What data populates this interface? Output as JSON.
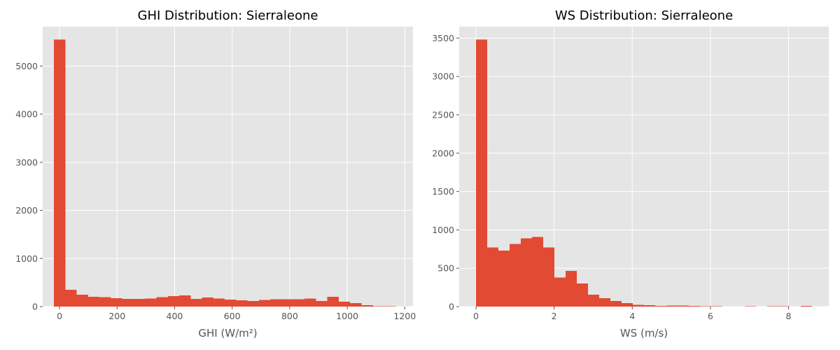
{
  "colors": {
    "plot_background": "#e5e5e5",
    "bar": "#e24a33",
    "grid": "#ffffff",
    "text": "#555555"
  },
  "chart_data": [
    {
      "type": "bar",
      "title": "GHI Distribution: Sierraleone",
      "xlabel": "GHI (W/m²)",
      "ylabel": "",
      "grid": true,
      "xlim": [
        -58.5,
        1228.5
      ],
      "ylim": [
        0,
        5820
      ],
      "xticks": [
        0,
        200,
        400,
        600,
        800,
        1000,
        1200
      ],
      "yticks": [
        0,
        1000,
        2000,
        3000,
        4000,
        5000
      ],
      "bin_edges": [
        -19.5,
        20.1,
        59.7,
        99.3,
        138.9,
        178.5,
        218.1,
        257.7,
        297.3,
        336.9,
        376.5,
        416.1,
        455.7,
        495.3,
        534.9,
        574.5,
        614.1,
        653.7,
        693.3,
        732.9,
        772.5,
        812.1,
        851.7,
        891.3,
        930.9,
        970.5,
        1010.1,
        1049.7,
        1089.3,
        1128.9,
        1168.5
      ],
      "counts": [
        5550,
        350,
        250,
        205,
        200,
        175,
        160,
        160,
        170,
        200,
        215,
        235,
        160,
        190,
        170,
        145,
        130,
        120,
        140,
        155,
        155,
        150,
        165,
        120,
        205,
        100,
        75,
        30,
        10,
        5
      ]
    },
    {
      "type": "bar",
      "title": "WS Distribution: Sierraleone",
      "xlabel": "WS (m/s)",
      "ylabel": "",
      "grid": true,
      "xlim": [
        -0.43,
        9.03
      ],
      "ylim": [
        0,
        3650
      ],
      "xticks": [
        0,
        2,
        4,
        6,
        8
      ],
      "yticks": [
        0,
        500,
        1000,
        1500,
        2000,
        2500,
        3000,
        3500
      ],
      "bin_edges": [
        0,
        0.2867,
        0.5733,
        0.86,
        1.1467,
        1.4333,
        1.72,
        2.0067,
        2.2933,
        2.58,
        2.8667,
        3.1533,
        3.44,
        3.7267,
        4.0133,
        4.3,
        4.5867,
        4.8733,
        5.16,
        5.4467,
        5.7333,
        6.02,
        6.3067,
        6.5933,
        6.88,
        7.1667,
        7.4533,
        7.74,
        8.0267,
        8.3133,
        8.6
      ],
      "counts": [
        3480,
        770,
        730,
        815,
        890,
        910,
        770,
        380,
        465,
        300,
        155,
        110,
        75,
        45,
        25,
        20,
        10,
        15,
        15,
        10,
        5,
        5,
        0,
        0,
        5,
        0,
        5,
        5,
        0,
        10
      ]
    }
  ]
}
